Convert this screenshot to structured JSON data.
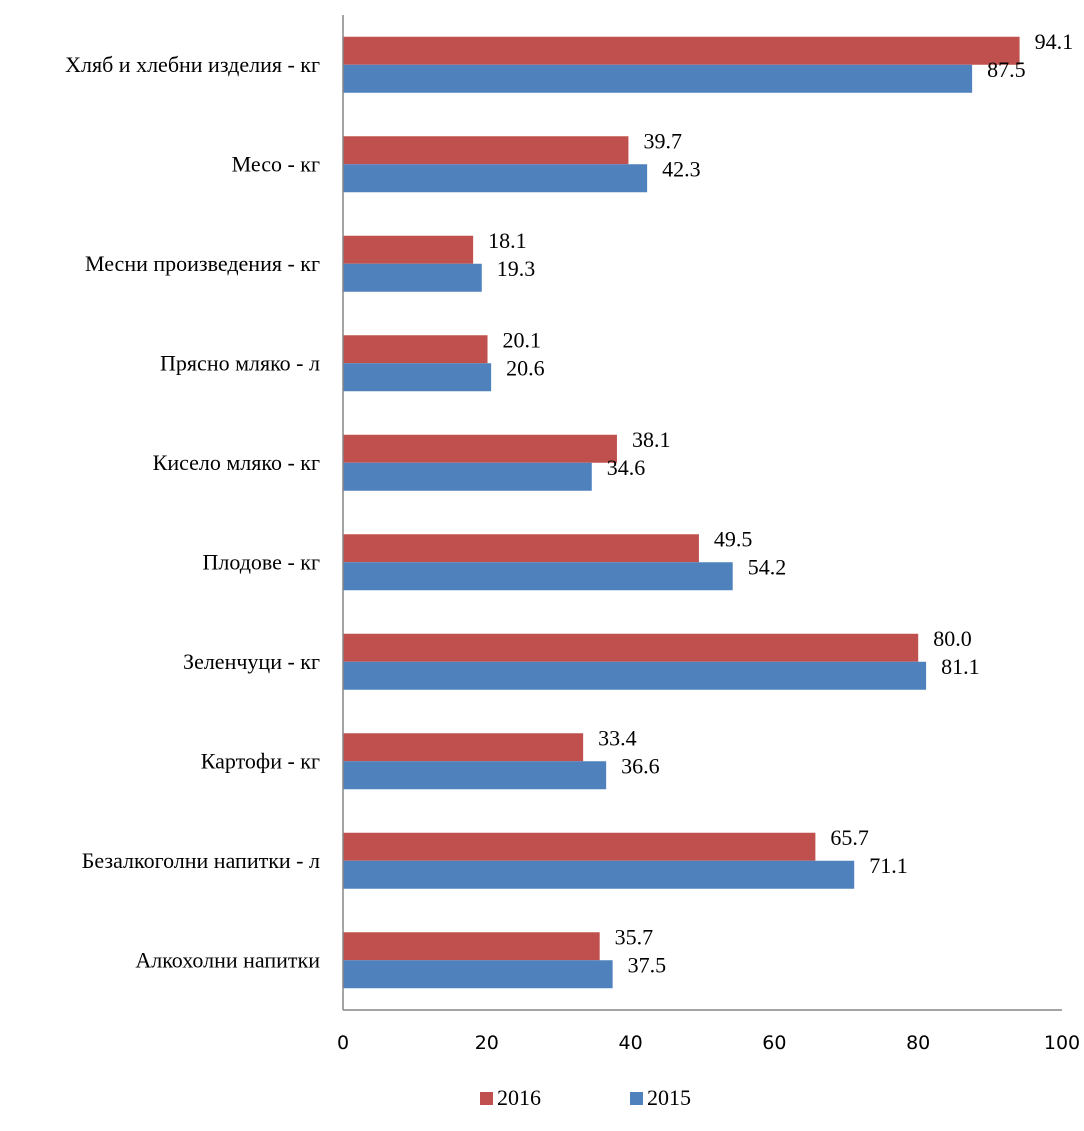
{
  "chart_data": {
    "type": "bar",
    "orientation": "horizontal",
    "categories": [
      "Хляб и хлебни изделия - кг",
      "Месо - кг",
      "Месни произведения - кг",
      "Прясно мляко - л",
      "Кисело мляко - кг",
      "Плодове - кг",
      "Зеленчуци - кг",
      "Картофи - кг",
      "Безалкоголни напитки - л",
      "Алкохолни напитки"
    ],
    "series": [
      {
        "name": "2016",
        "color": "#c0504d",
        "values": [
          94.1,
          39.7,
          18.1,
          20.1,
          38.1,
          49.5,
          80.0,
          33.4,
          65.7,
          35.7
        ],
        "labels": [
          "94.1",
          "39.7",
          "18.1",
          "20.1",
          "38.1",
          "49.5",
          "80.0",
          "33.4",
          "65.7",
          "35.7"
        ]
      },
      {
        "name": "2015",
        "color": "#4f81bd",
        "values": [
          87.5,
          42.3,
          19.3,
          20.6,
          34.6,
          54.2,
          81.1,
          36.6,
          71.1,
          37.5
        ],
        "labels": [
          "87.5",
          "42.3",
          "19.3",
          "20.6",
          "34.6",
          "54.2",
          "81.1",
          "36.6",
          "71.1",
          "37.5"
        ]
      }
    ],
    "xlim": [
      0,
      100
    ],
    "x_ticks": [
      "0",
      "20",
      "40",
      "60",
      "80",
      "100"
    ],
    "grid": false,
    "legend_position": "bottom"
  }
}
